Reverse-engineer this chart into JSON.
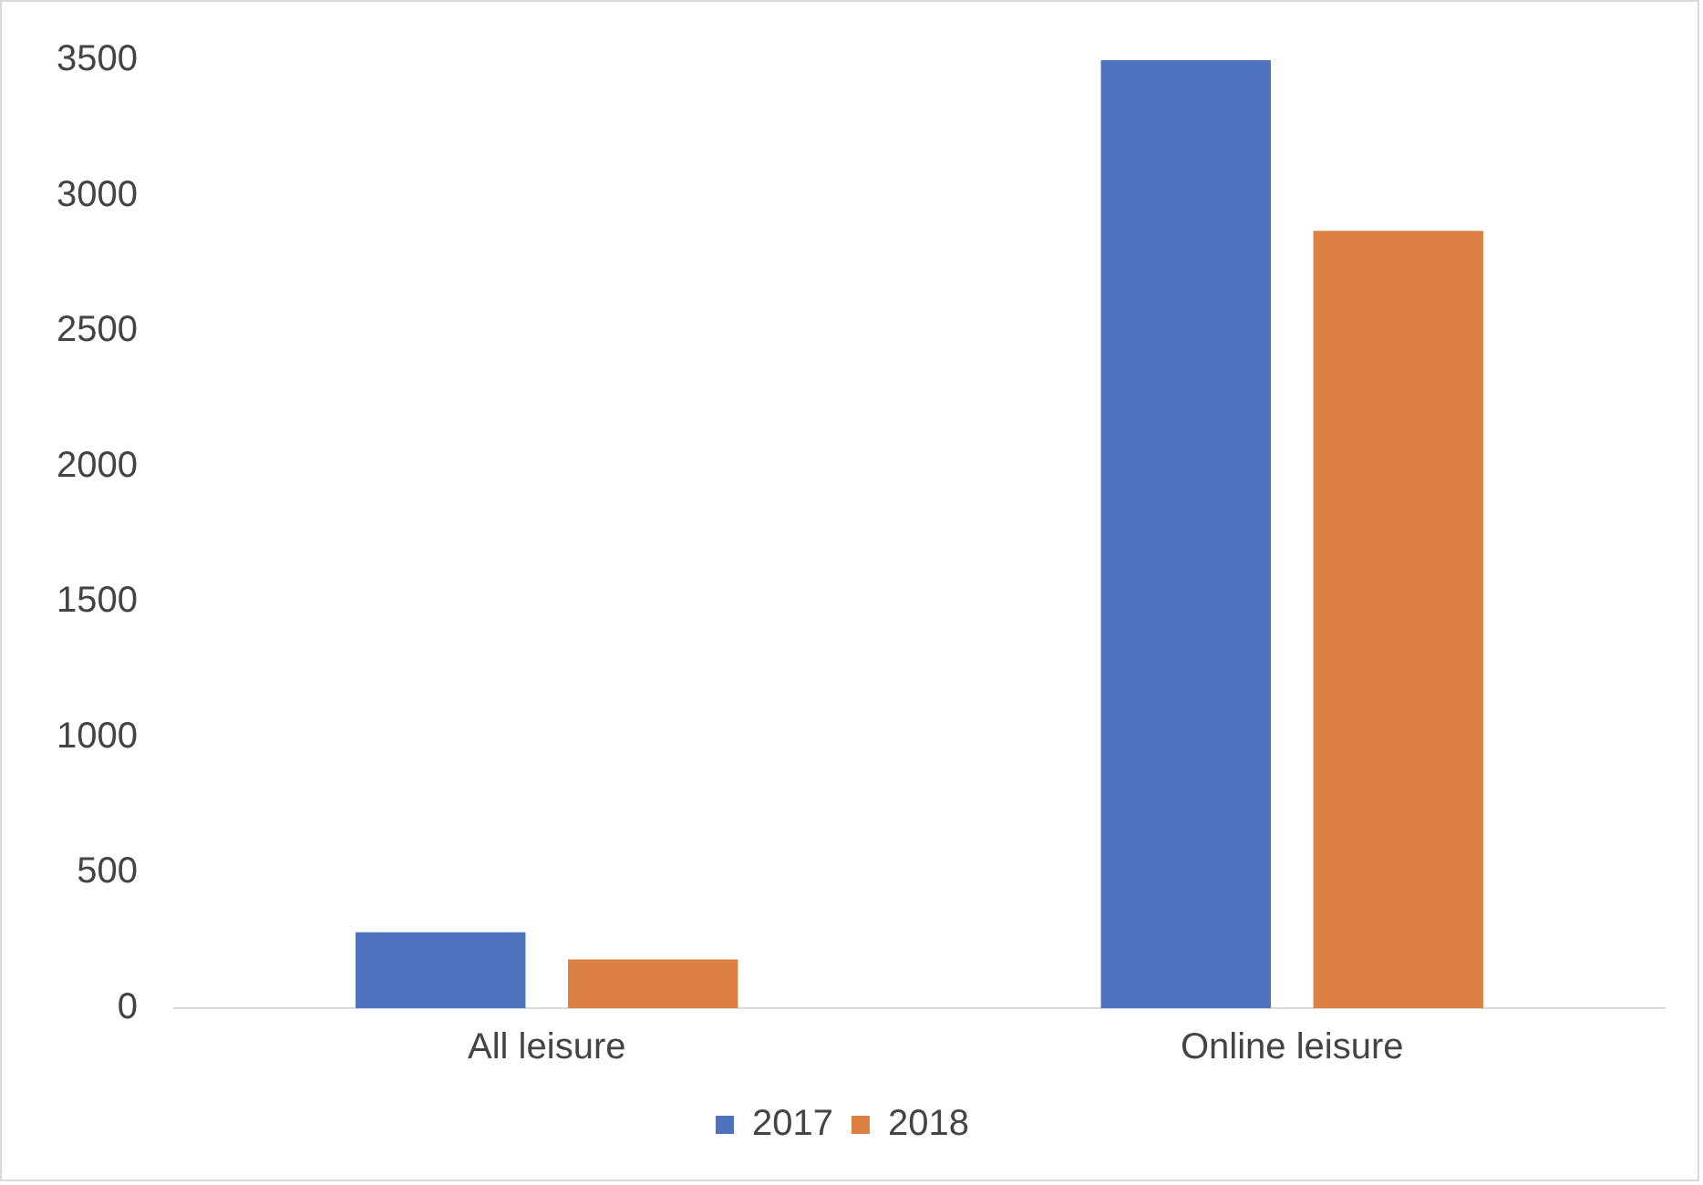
{
  "chart_data": {
    "type": "bar",
    "categories": [
      "All leisure",
      "Online leisure"
    ],
    "series": [
      {
        "name": "2017",
        "color": "#4e72be",
        "values": [
          280,
          3500
        ]
      },
      {
        "name": "2018",
        "color": "#dd8043",
        "values": [
          180,
          2870
        ]
      }
    ],
    "ylim": [
      0,
      3500
    ],
    "yticks": [
      0,
      500,
      1000,
      1500,
      2000,
      2500,
      3000,
      3500
    ],
    "grid": false,
    "legend": "bottom"
  }
}
